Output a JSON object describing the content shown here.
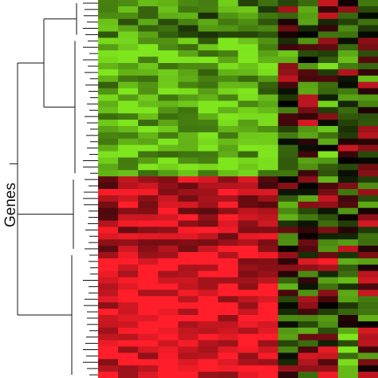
{
  "chart_data": {
    "type": "heatmap",
    "ylabel": "Genes",
    "xlabel": "",
    "title": "",
    "color_scale": {
      "low": "#7FE61E",
      "mid": "#000000",
      "high": "#FF1E2A"
    },
    "n_samples": 14,
    "n_genes": 60,
    "row_dendrogram": true,
    "sample_profiles": [
      [
        -0.55,
        -0.65,
        -0.55,
        -0.6,
        -0.55,
        -0.55,
        -0.6,
        -0.55,
        -0.55,
        -0.15,
        -0.1,
        0.3,
        -0.2,
        0.2
      ],
      [
        -0.75,
        -0.85,
        -0.75,
        -0.8,
        -0.75,
        -0.7,
        -0.8,
        -0.75,
        -0.7,
        -0.1,
        0.05,
        -0.25,
        0.0,
        -0.1
      ],
      [
        0.65,
        0.75,
        0.65,
        0.7,
        0.75,
        0.7,
        0.75,
        0.7,
        0.6,
        0.05,
        0.1,
        -0.05,
        0.05,
        0.1
      ],
      [
        0.8,
        0.95,
        0.9,
        0.9,
        0.95,
        0.9,
        0.9,
        0.85,
        0.8,
        -0.05,
        0.05,
        0.15,
        -0.35,
        0.05
      ]
    ],
    "cluster_sizes": [
      6,
      22,
      12,
      20
    ],
    "seed": 7
  },
  "labels": {
    "genes_axis": "Genes"
  }
}
